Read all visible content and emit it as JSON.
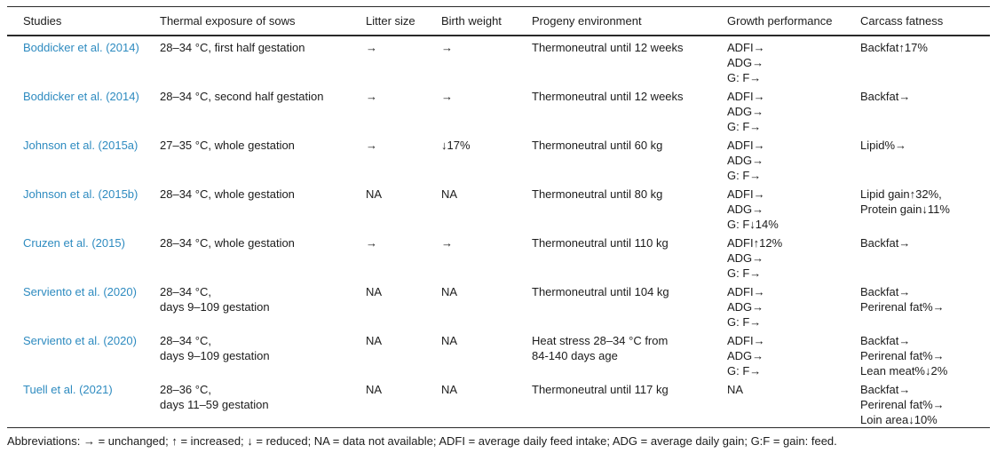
{
  "colors": {
    "link_blue": "#2e8bc0",
    "rule_dark": "#2a2a2a",
    "bottom_strip_blue": "#c6d6ea"
  },
  "table": {
    "columns": [
      {
        "key": "studies",
        "label": "Studies"
      },
      {
        "key": "thermal",
        "label": "Thermal exposure of sows"
      },
      {
        "key": "litter",
        "label": "Litter size"
      },
      {
        "key": "birth",
        "label": "Birth weight"
      },
      {
        "key": "progeny",
        "label": "Progeny environment"
      },
      {
        "key": "growth",
        "label": "Growth performance"
      },
      {
        "key": "carcass",
        "label": "Carcass fatness"
      }
    ],
    "cell_keys": [
      "thermal",
      "litter",
      "birth",
      "progeny",
      "growth",
      "carcass"
    ],
    "rows": [
      {
        "study": "Boddicker et al. (2014)",
        "thermal": [
          "28–34 °C, first half gestation"
        ],
        "litter": [
          "→"
        ],
        "birth": [
          "→"
        ],
        "progeny": [
          "Thermoneutral until 12 weeks"
        ],
        "growth": [
          "ADFI→",
          "ADG→",
          "G: F→"
        ],
        "carcass": [
          "Backfat↑17%"
        ]
      },
      {
        "study": "Boddicker et al. (2014)",
        "thermal": [
          "28–34 °C, second half gestation"
        ],
        "litter": [
          "→"
        ],
        "birth": [
          "→"
        ],
        "progeny": [
          "Thermoneutral until 12 weeks"
        ],
        "growth": [
          "ADFI→",
          "ADG→",
          "G: F→"
        ],
        "carcass": [
          "Backfat→"
        ]
      },
      {
        "study": "Johnson et al. (2015a)",
        "thermal": [
          "27–35 °C, whole gestation"
        ],
        "litter": [
          "→"
        ],
        "birth": [
          "↓17%"
        ],
        "progeny": [
          "Thermoneutral until 60 kg"
        ],
        "growth": [
          "ADFI→",
          "ADG→",
          "G: F→"
        ],
        "carcass": [
          "Lipid%→"
        ]
      },
      {
        "study": "Johnson et al. (2015b)",
        "thermal": [
          "28–34 °C, whole gestation"
        ],
        "litter": [
          "NA"
        ],
        "birth": [
          "NA"
        ],
        "progeny": [
          "Thermoneutral until 80 kg"
        ],
        "growth": [
          "ADFI→",
          "ADG→",
          "G: F↓14%"
        ],
        "carcass": [
          "Lipid gain↑32%,",
          "Protein gain↓11%"
        ]
      },
      {
        "study": "Cruzen et al. (2015)",
        "thermal": [
          "28–34 °C, whole gestation"
        ],
        "litter": [
          "→"
        ],
        "birth": [
          "→"
        ],
        "progeny": [
          "Thermoneutral until 110 kg"
        ],
        "growth": [
          "ADFI↑12%",
          "ADG→",
          "G: F→"
        ],
        "carcass": [
          "Backfat→"
        ]
      },
      {
        "study": "Serviento et al. (2020)",
        "thermal": [
          "28–34 °C,",
          "days 9–109 gestation"
        ],
        "litter": [
          "NA"
        ],
        "birth": [
          "NA"
        ],
        "progeny": [
          "Thermoneutral until 104 kg"
        ],
        "growth": [
          "ADFI→",
          "ADG→",
          "G: F→"
        ],
        "carcass": [
          "Backfat→",
          "Perirenal fat%→"
        ]
      },
      {
        "study": "Serviento et al. (2020)",
        "thermal": [
          "28–34 °C,",
          "days 9–109 gestation"
        ],
        "litter": [
          "NA"
        ],
        "birth": [
          "NA"
        ],
        "progeny": [
          "Heat stress 28–34 °C from",
          "84-140 days age"
        ],
        "growth": [
          "ADFI→",
          "ADG→",
          "G: F→"
        ],
        "carcass": [
          "Backfat→",
          "Perirenal fat%→",
          "Lean meat%↓2%"
        ]
      },
      {
        "study": "Tuell et al. (2021)",
        "thermal": [
          "28–36 °C,",
          "days 11–59 gestation"
        ],
        "litter": [
          "NA"
        ],
        "birth": [
          "NA"
        ],
        "progeny": [
          "Thermoneutral until 117 kg"
        ],
        "growth": [
          "NA"
        ],
        "carcass": [
          "Backfat→",
          "Perirenal fat%→",
          "Loin area↓10%"
        ]
      }
    ]
  },
  "footer": {
    "abbreviations": "Abbreviations: → = unchanged; ↑ = increased; ↓ = reduced; NA = data not available; ADFI = average daily feed intake; ADG = average daily gain; G:F = gain: feed."
  }
}
